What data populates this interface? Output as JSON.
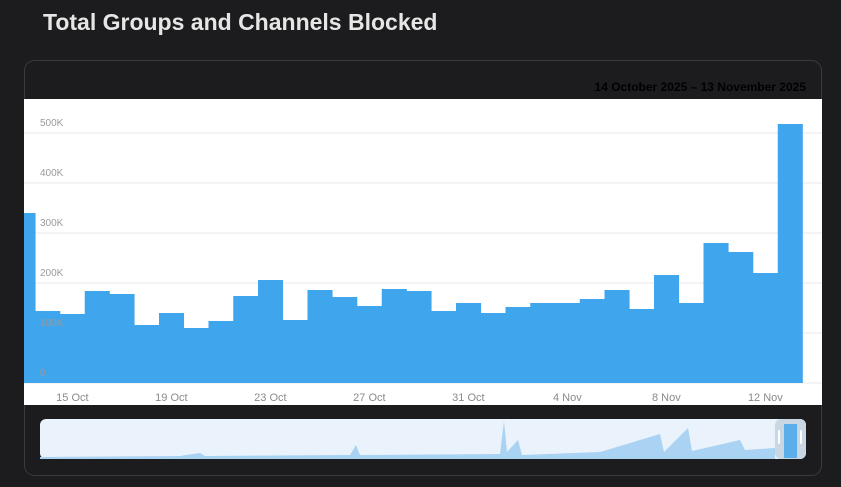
{
  "chart_data": {
    "type": "bar",
    "title": "Total Groups and Channels Blocked",
    "subtitle": "14 October 2025 – 13 November 2025",
    "categories": [
      null,
      null,
      "15 Oct",
      null,
      null,
      null,
      "19 Oct",
      null,
      null,
      null,
      "23 Oct",
      null,
      null,
      null,
      "27 Oct",
      null,
      null,
      null,
      "31 Oct",
      null,
      null,
      null,
      "4 Nov",
      null,
      null,
      null,
      "8 Nov",
      null,
      null,
      null,
      "12 Nov",
      null
    ],
    "values": [
      340000,
      144000,
      138000,
      184000,
      178000,
      116000,
      140000,
      110000,
      124000,
      174000,
      206000,
      126000,
      186000,
      172000,
      154000,
      188000,
      184000,
      144000,
      160000,
      140000,
      152000,
      160000,
      160000,
      168000,
      186000,
      148000,
      216000,
      160000,
      280000,
      262000,
      220000,
      518000
    ],
    "color": "#3fa5ec",
    "ylim": [
      0,
      568000
    ],
    "yticks": [
      {
        "value": 0,
        "label": "0"
      },
      {
        "value": 100000,
        "label": "100K"
      },
      {
        "value": 200000,
        "label": "200K"
      },
      {
        "value": 300000,
        "label": "300K"
      },
      {
        "value": 400000,
        "label": "400K"
      },
      {
        "value": 500000,
        "label": "500K"
      }
    ],
    "grid": true
  }
}
